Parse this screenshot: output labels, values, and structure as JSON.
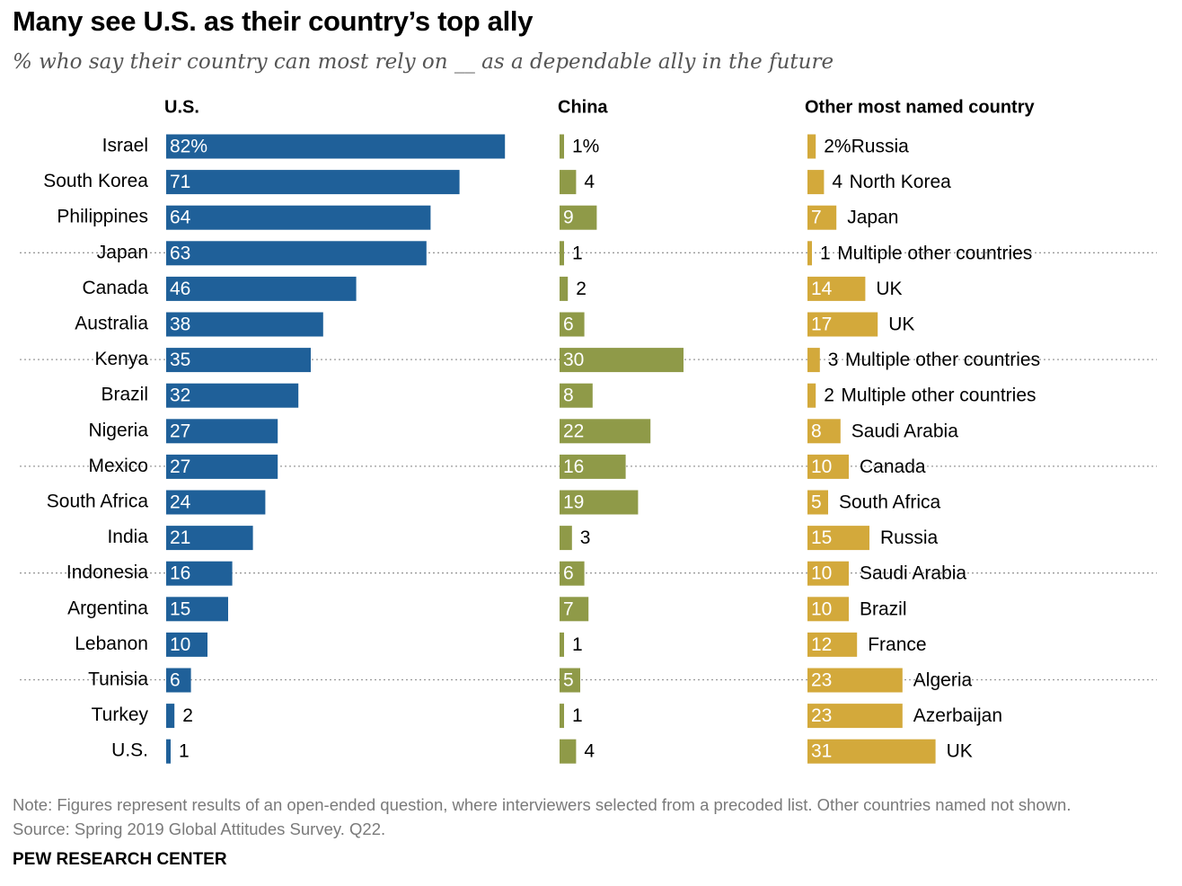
{
  "title": "Many see U.S. as their country’s top ally",
  "subtitle": "% who say their country can most rely on __ as a dependable ally in the future",
  "note": "Note: Figures represent results of an open-ended question, where interviewers selected from a precoded list. Other countries named not shown.",
  "source": "Source: Spring 2019 Global Attitudes Survey. Q22.",
  "brand": "PEW RESEARCH CENTER",
  "colors": {
    "us": "#1f6099",
    "china": "#8f9a48",
    "other": "#d3a93b",
    "divider": "#9a9a9a"
  },
  "chart_data": {
    "type": "bar",
    "categories": [
      "Israel",
      "South Korea",
      "Philippines",
      "Japan",
      "Canada",
      "Australia",
      "Kenya",
      "Brazil",
      "Nigeria",
      "Mexico",
      "South Africa",
      "India",
      "Indonesia",
      "Argentina",
      "Lebanon",
      "Tunisia",
      "Turkey",
      "U.S."
    ],
    "series": [
      {
        "name": "U.S.",
        "values": [
          82,
          71,
          64,
          63,
          46,
          38,
          35,
          32,
          27,
          27,
          24,
          21,
          16,
          15,
          10,
          6,
          2,
          1
        ]
      },
      {
        "name": "China",
        "values": [
          1,
          4,
          9,
          1,
          2,
          6,
          30,
          8,
          22,
          16,
          19,
          3,
          6,
          7,
          1,
          5,
          1,
          4
        ]
      },
      {
        "name": "Other most named country",
        "values": [
          2,
          4,
          7,
          1,
          14,
          17,
          3,
          2,
          8,
          10,
          5,
          15,
          10,
          10,
          12,
          23,
          23,
          31
        ]
      }
    ],
    "other_country_names": [
      "Russia",
      "North Korea",
      "Japan",
      "Multiple other countries",
      "UK",
      "UK",
      "Multiple other countries",
      "Multiple other countries",
      "Saudi Arabia",
      "Canada",
      "South Africa",
      "Russia",
      "Saudi Arabia",
      "Brazil",
      "France",
      "Algeria",
      "Azerbaijan",
      "UK"
    ],
    "first_row_suffix": "%",
    "group_dividers_after": [
      2,
      5,
      8,
      11,
      14
    ]
  }
}
